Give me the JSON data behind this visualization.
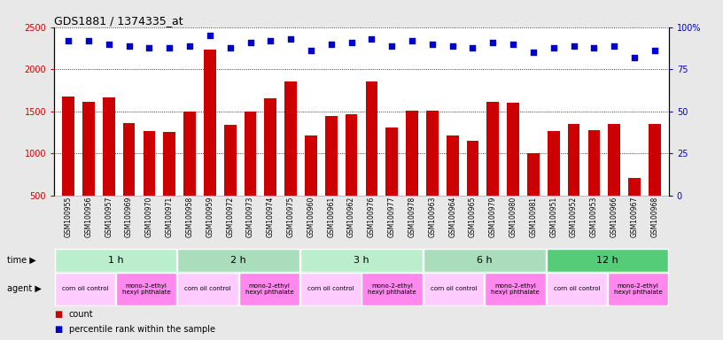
{
  "title": "GDS1881 / 1374335_at",
  "samples": [
    "GSM100955",
    "GSM100956",
    "GSM100957",
    "GSM100969",
    "GSM100970",
    "GSM100971",
    "GSM100958",
    "GSM100959",
    "GSM100972",
    "GSM100973",
    "GSM100974",
    "GSM100975",
    "GSM100960",
    "GSM100961",
    "GSM100962",
    "GSM100976",
    "GSM100977",
    "GSM100978",
    "GSM100963",
    "GSM100964",
    "GSM100965",
    "GSM100979",
    "GSM100980",
    "GSM100981",
    "GSM100951",
    "GSM100952",
    "GSM100953",
    "GSM100966",
    "GSM100967",
    "GSM100968"
  ],
  "counts": [
    1680,
    1610,
    1665,
    1360,
    1265,
    1255,
    1495,
    2230,
    1340,
    1500,
    1655,
    1860,
    1210,
    1450,
    1470,
    1860,
    1310,
    1505,
    1510,
    1215,
    1145,
    1610,
    1600,
    1000,
    1265,
    1355,
    1280,
    1355,
    705,
    1355
  ],
  "percentiles": [
    92,
    92,
    90,
    89,
    88,
    88,
    89,
    95,
    88,
    91,
    92,
    93,
    86,
    90,
    91,
    93,
    89,
    92,
    90,
    89,
    88,
    91,
    90,
    85,
    88,
    89,
    88,
    89,
    82,
    86
  ],
  "bar_color": "#cc0000",
  "dot_color": "#0000cc",
  "ylim_left": [
    500,
    2500
  ],
  "ylim_right": [
    0,
    100
  ],
  "yticks_left": [
    500,
    1000,
    1500,
    2000,
    2500
  ],
  "yticks_right": [
    0,
    25,
    50,
    75,
    100
  ],
  "time_groups": [
    {
      "label": "1 h",
      "start": 0,
      "end": 5,
      "color": "#bbeecc"
    },
    {
      "label": "2 h",
      "start": 6,
      "end": 11,
      "color": "#aaddbb"
    },
    {
      "label": "3 h",
      "start": 12,
      "end": 17,
      "color": "#bbeecc"
    },
    {
      "label": "6 h",
      "start": 18,
      "end": 23,
      "color": "#aaddbb"
    },
    {
      "label": "12 h",
      "start": 24,
      "end": 29,
      "color": "#55cc77"
    }
  ],
  "agent_groups": [
    {
      "label": "corn oil control",
      "start": 0,
      "end": 2,
      "color": "#ffccff"
    },
    {
      "label": "mono-2-ethyl\nhexyl phthalate",
      "start": 3,
      "end": 5,
      "color": "#ff88ee"
    },
    {
      "label": "corn oil control",
      "start": 6,
      "end": 8,
      "color": "#ffccff"
    },
    {
      "label": "mono-2-ethyl\nhexyl phthalate",
      "start": 9,
      "end": 11,
      "color": "#ff88ee"
    },
    {
      "label": "corn oil control",
      "start": 12,
      "end": 14,
      "color": "#ffccff"
    },
    {
      "label": "mono-2-ethyl\nhexyl phthalate",
      "start": 15,
      "end": 17,
      "color": "#ff88ee"
    },
    {
      "label": "corn oil control",
      "start": 18,
      "end": 20,
      "color": "#ffccff"
    },
    {
      "label": "mono-2-ethyl\nhexyl phthalate",
      "start": 21,
      "end": 23,
      "color": "#ff88ee"
    },
    {
      "label": "corn oil control",
      "start": 24,
      "end": 26,
      "color": "#ffccff"
    },
    {
      "label": "mono-2-ethyl\nhexyl phthalate",
      "start": 27,
      "end": 29,
      "color": "#ff88ee"
    }
  ],
  "bg_color": "#e8e8e8",
  "plot_bg": "#ffffff"
}
